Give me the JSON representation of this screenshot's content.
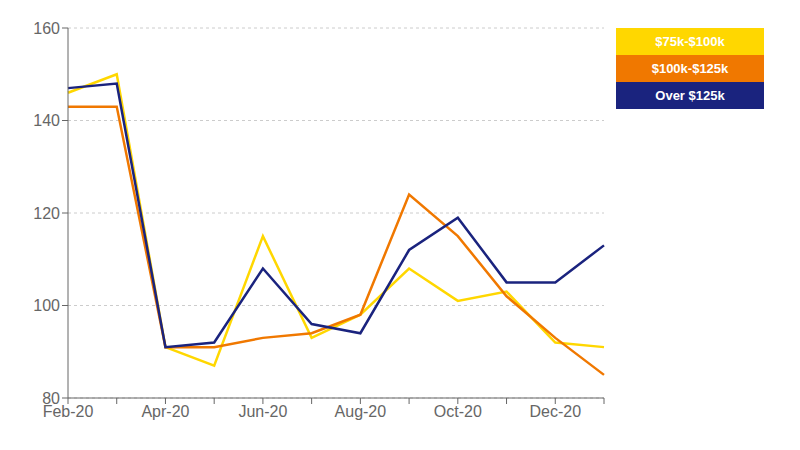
{
  "chart_data": {
    "type": "line",
    "categories": [
      "Feb-20",
      null,
      "Apr-20",
      null,
      "Jun-20",
      null,
      "Aug-20",
      null,
      "Oct-20",
      null,
      "Dec-20",
      null
    ],
    "series": [
      {
        "name": "$75k-$100k",
        "color": "#FFD700",
        "values": [
          146,
          150,
          91,
          87,
          115,
          93,
          98,
          108,
          101,
          103,
          92,
          91
        ]
      },
      {
        "name": "$100k-$125k",
        "color": "#F07800",
        "values": [
          143,
          143,
          91,
          91,
          93,
          94,
          98,
          124,
          115,
          102,
          93,
          85
        ]
      },
      {
        "name": "Over $125k",
        "color": "#1A237E",
        "values": [
          147,
          148,
          91,
          92,
          108,
          96,
          94,
          112,
          119,
          105,
          105,
          113
        ]
      }
    ],
    "ylim": [
      80,
      160
    ],
    "yticks": [
      80,
      100,
      120,
      140,
      160
    ],
    "grid": true,
    "legend": "upper right"
  }
}
